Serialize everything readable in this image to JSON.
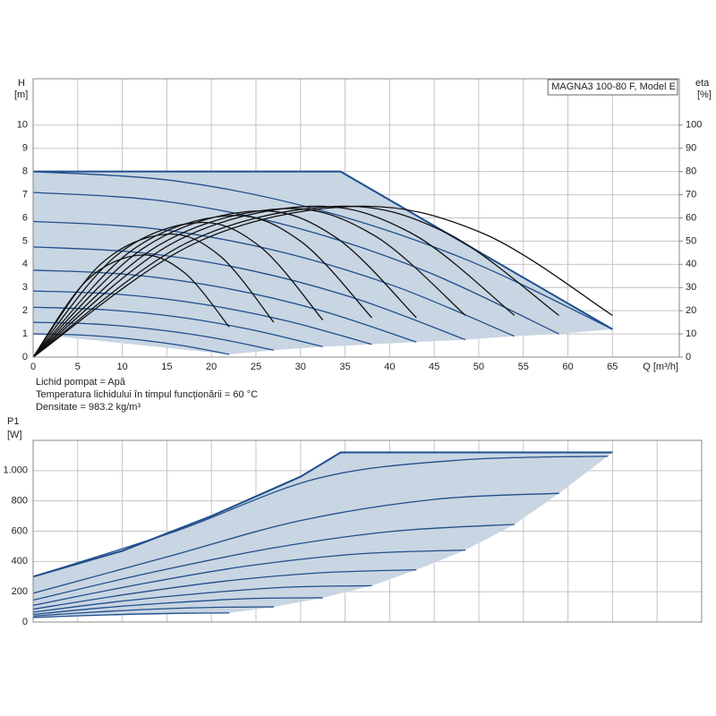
{
  "chart_data": [
    {
      "type": "line",
      "xlabel": "Q [m³/h]",
      "ylabel": [
        "H",
        "[m]"
      ],
      "y2label": [
        "eta",
        "[%]"
      ],
      "legend": "MAGNA3 100-80 F, Model E",
      "notes": [
        "Lichid pompat = Apă",
        "Temperatura lichidului în timpul funcționării = 60 °C",
        "Densitate = 983.2 kg/m³"
      ],
      "xlim": [
        0,
        72.5
      ],
      "xticks": [
        0,
        5,
        10,
        15,
        20,
        25,
        30,
        35,
        40,
        45,
        50,
        55,
        60,
        65
      ],
      "xtick_labels": true,
      "ylim": [
        0,
        12
      ],
      "yticks": [
        0,
        1,
        2,
        3,
        4,
        5,
        6,
        7,
        8,
        9,
        10
      ],
      "y2lim": [
        0,
        120
      ],
      "y2ticks": [
        0,
        10,
        20,
        30,
        40,
        50,
        60,
        70,
        80,
        90,
        100
      ],
      "grid": true,
      "series": [
        {
          "fill": "#c8d5e2",
          "x": [
            0,
            34.5,
            65,
            59,
            54,
            48.5,
            43,
            38,
            32.5,
            27,
            22,
            0
          ],
          "values": [
            8,
            8,
            1.2,
            1.0,
            0.9,
            0.75,
            0.65,
            0.55,
            0.45,
            0.3,
            0.12,
            1.0
          ]
        },
        {
          "color": "#1f4e8c",
          "width": 2,
          "smooth": false,
          "x": [
            0,
            34.5,
            65
          ],
          "values": [
            8,
            8,
            1.2
          ]
        },
        {
          "color": "#1f4e8c",
          "x": [
            0,
            16.25,
            32.5,
            48.75,
            65
          ],
          "values": [
            8,
            7.58,
            6.3,
            4.18,
            1.2
          ]
        },
        {
          "color": "#1f4e8c",
          "x": [
            0,
            14.75,
            29.5,
            44.25,
            59
          ],
          "values": [
            7.1,
            6.72,
            5.58,
            3.67,
            1.0
          ]
        },
        {
          "color": "#1f4e8c",
          "x": [
            0,
            13.5,
            27,
            40.5,
            54
          ],
          "values": [
            5.85,
            5.54,
            4.61,
            3.07,
            0.9
          ]
        },
        {
          "color": "#1f4e8c",
          "x": [
            0,
            12.13,
            24.25,
            36.38,
            48.5
          ],
          "values": [
            4.75,
            4.5,
            3.75,
            2.5,
            0.75
          ]
        },
        {
          "color": "#1f4e8c",
          "x": [
            0,
            10.75,
            21.5,
            32.25,
            43
          ],
          "values": [
            3.75,
            3.56,
            2.98,
            2.01,
            0.65
          ]
        },
        {
          "color": "#1f4e8c",
          "x": [
            0,
            9.5,
            19,
            28.5,
            38
          ],
          "values": [
            2.85,
            2.71,
            2.28,
            1.56,
            0.55
          ]
        },
        {
          "color": "#1f4e8c",
          "x": [
            0,
            8.13,
            16.25,
            24.38,
            32.5
          ],
          "values": [
            2.15,
            2.04,
            1.73,
            1.19,
            0.45
          ]
        },
        {
          "color": "#1f4e8c",
          "x": [
            0,
            6.75,
            13.5,
            20.25,
            27
          ],
          "values": [
            1.5,
            1.43,
            1.2,
            0.83,
            0.3
          ]
        },
        {
          "color": "#1f4e8c",
          "x": [
            0,
            5.5,
            11,
            16.5,
            22
          ],
          "values": [
            1.0,
            0.95,
            0.78,
            0.51,
            0.12
          ]
        },
        {
          "color": "#111111",
          "axis": "y2",
          "x": [
            0,
            6,
            12,
            17,
            22
          ],
          "values": [
            0,
            33,
            44,
            36.3,
            13
          ]
        },
        {
          "color": "#111111",
          "axis": "y2",
          "x": [
            0,
            7.5,
            15,
            21,
            27
          ],
          "values": [
            0,
            39.8,
            53,
            43.5,
            15
          ]
        },
        {
          "color": "#111111",
          "axis": "y2",
          "x": [
            0,
            9.25,
            18.5,
            25.5,
            32.5
          ],
          "values": [
            0,
            43.5,
            58,
            47.5,
            16
          ]
        },
        {
          "color": "#111111",
          "axis": "y2",
          "x": [
            0,
            11,
            22,
            30,
            38
          ],
          "values": [
            0,
            45.8,
            61,
            50,
            17
          ]
        },
        {
          "color": "#111111",
          "axis": "y2",
          "x": [
            0,
            12.5,
            25,
            34,
            43
          ],
          "values": [
            0,
            47.3,
            63,
            51.5,
            17
          ]
        },
        {
          "color": "#111111",
          "axis": "y2",
          "x": [
            0,
            14,
            28,
            38.25,
            48.5
          ],
          "values": [
            0,
            48,
            64,
            52.5,
            18
          ]
        },
        {
          "color": "#111111",
          "axis": "y2",
          "x": [
            0,
            15.5,
            31,
            42.5,
            54
          ],
          "values": [
            0,
            48.8,
            65,
            53.3,
            18
          ]
        },
        {
          "color": "#111111",
          "axis": "y2",
          "x": [
            0,
            17,
            34,
            46.5,
            59
          ],
          "values": [
            0,
            48.8,
            65,
            53.3,
            18
          ]
        },
        {
          "color": "#111111",
          "axis": "y2",
          "x": [
            0,
            18,
            36,
            50.5,
            65
          ],
          "values": [
            0,
            48.8,
            65,
            53.3,
            18
          ]
        }
      ]
    },
    {
      "type": "line",
      "ylabel": [
        "P1",
        "[W]"
      ],
      "xlim": [
        0,
        75
      ],
      "xticks": [
        0,
        5,
        10,
        15,
        20,
        25,
        30,
        35,
        40,
        45,
        50,
        55,
        60,
        65,
        70
      ],
      "xtick_labels": false,
      "ylim": [
        0,
        1200
      ],
      "yticks": [
        0,
        200,
        400,
        600,
        800,
        {
          "value": 1000,
          "label": "1.000"
        }
      ],
      "grid": true,
      "series": [
        {
          "fill": "#c8d5e2",
          "x": [
            0,
            10,
            20,
            30,
            34.5,
            65,
            59,
            54,
            48.5,
            43,
            38,
            32.5,
            27,
            22,
            0
          ],
          "values": [
            300,
            470,
            700,
            960,
            1120,
            1120,
            850,
            645,
            475,
            345,
            240,
            160,
            100,
            60,
            30
          ]
        },
        {
          "color": "#1f4e8c",
          "width": 2,
          "smooth": false,
          "x": [
            0,
            10,
            20,
            30,
            34.5,
            65
          ],
          "values": [
            300,
            470,
            700,
            960,
            1120,
            1120
          ]
        },
        {
          "color": "#1f4e8c",
          "x": [
            0,
            16,
            32,
            48,
            64.5
          ],
          "values": [
            300,
            600,
            950,
            1070,
            1095
          ]
        },
        {
          "color": "#1f4e8c",
          "x": [
            0,
            15,
            30,
            45,
            59
          ],
          "values": [
            190,
            430,
            670,
            810,
            850
          ]
        },
        {
          "color": "#1f4e8c",
          "x": [
            0,
            13.5,
            27,
            40.5,
            54
          ],
          "values": [
            145,
            330,
            490,
            600,
            645
          ]
        },
        {
          "color": "#1f4e8c",
          "x": [
            0,
            12,
            24,
            36.5,
            48.5
          ],
          "values": [
            110,
            250,
            370,
            450,
            475
          ]
        },
        {
          "color": "#1f4e8c",
          "x": [
            0,
            10.75,
            21.5,
            32.25,
            43
          ],
          "values": [
            85,
            185,
            270,
            325,
            345
          ]
        },
        {
          "color": "#1f4e8c",
          "x": [
            0,
            9.5,
            19,
            28.5,
            38
          ],
          "values": [
            65,
            135,
            190,
            230,
            240
          ]
        },
        {
          "color": "#1f4e8c",
          "x": [
            0,
            8,
            16.25,
            24.4,
            32.5
          ],
          "values": [
            50,
            95,
            130,
            155,
            160
          ]
        },
        {
          "color": "#1f4e8c",
          "x": [
            0,
            6.75,
            13.5,
            20.25,
            27
          ],
          "values": [
            40,
            65,
            85,
            97,
            100
          ]
        },
        {
          "color": "#1f4e8c",
          "x": [
            0,
            5.5,
            11,
            16.5,
            22
          ],
          "values": [
            30,
            42,
            52,
            58,
            60
          ]
        }
      ]
    }
  ]
}
